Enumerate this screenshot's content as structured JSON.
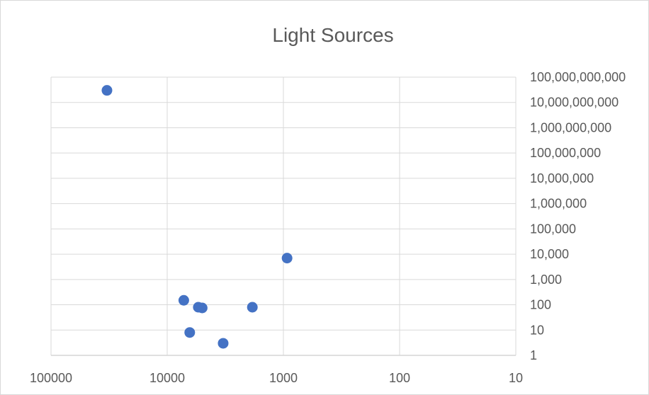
{
  "chart_data": {
    "type": "scatter",
    "title": "Light Sources",
    "xlabel": "",
    "ylabel": "",
    "x_scale": "log",
    "x_reversed": true,
    "y_scale": "log",
    "xlim": [
      100000,
      10
    ],
    "ylim": [
      1,
      100000000000
    ],
    "x_tick_labels": [
      "100000",
      "10000",
      "1000",
      "100",
      "10"
    ],
    "y_tick_labels": [
      "1",
      "10",
      "100",
      "1,000",
      "10,000",
      "100,000",
      "1,000,000",
      "10,000,000",
      "100,000,000",
      "1,000,000,000",
      "10,000,000,000",
      "100,000,000,000"
    ],
    "y_axis_position": "right",
    "grid": true,
    "legend": "none",
    "marker_color": "#4472c4",
    "series": [
      {
        "points": [
          {
            "x": 33000,
            "y": 30000000000
          },
          {
            "x": 930,
            "y": 7000
          },
          {
            "x": 7200,
            "y": 150
          },
          {
            "x": 5400,
            "y": 80
          },
          {
            "x": 5000,
            "y": 75
          },
          {
            "x": 1850,
            "y": 80
          },
          {
            "x": 6400,
            "y": 8
          },
          {
            "x": 3300,
            "y": 3
          }
        ]
      }
    ]
  }
}
